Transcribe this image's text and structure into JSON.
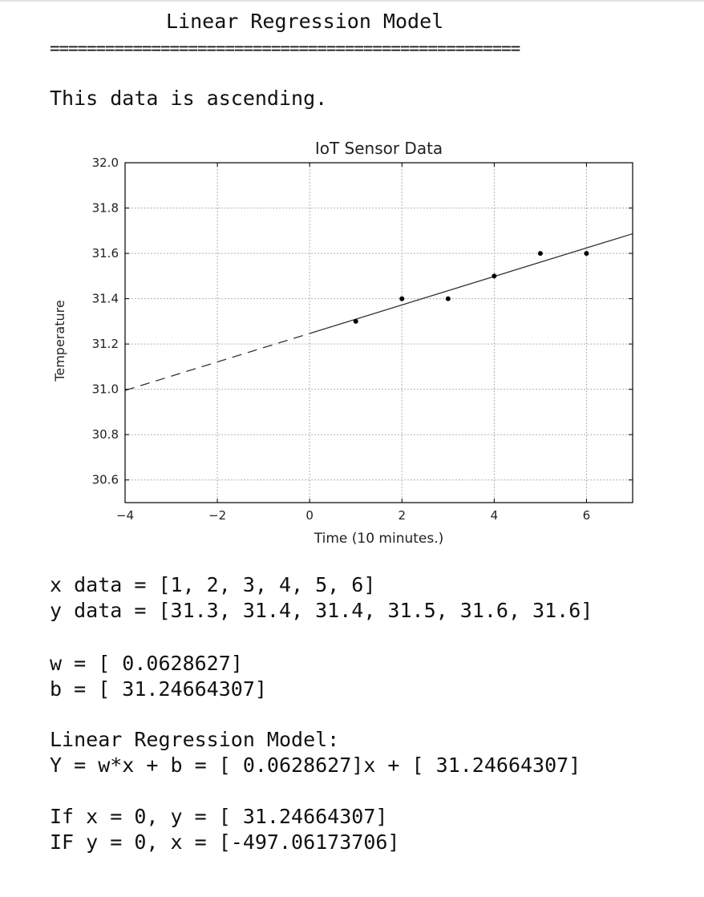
{
  "heading": "Linear Regression Model",
  "divider": "===================================================",
  "trend_note": "This data is ascending.",
  "chart_data": {
    "type": "scatter",
    "title": "IoT Sensor Data",
    "xlabel": "Time (10 minutes.)",
    "ylabel": "Temperature",
    "xlim": [
      -4,
      7
    ],
    "ylim": [
      30.5,
      32.0
    ],
    "xticks": [
      -4,
      -2,
      0,
      2,
      4,
      6
    ],
    "xtick_labels": [
      "−4",
      "−2",
      "0",
      "2",
      "4",
      "6"
    ],
    "yticks": [
      30.6,
      30.8,
      31.0,
      31.2,
      31.4,
      31.6,
      31.8,
      32.0
    ],
    "ytick_labels": [
      "30.6",
      "30.8",
      "31.0",
      "31.2",
      "31.4",
      "31.6",
      "31.8",
      "32.0"
    ],
    "grid": true,
    "points": [
      {
        "x": 1,
        "y": 31.3
      },
      {
        "x": 2,
        "y": 31.4
      },
      {
        "x": 3,
        "y": 31.4
      },
      {
        "x": 4,
        "y": 31.5
      },
      {
        "x": 5,
        "y": 31.6
      },
      {
        "x": 6,
        "y": 31.6
      }
    ],
    "fit": {
      "slope": 0.0628627,
      "intercept": 31.24664307,
      "solid_range": [
        0,
        7
      ],
      "dashed_range": [
        -4,
        0
      ]
    },
    "colors": {
      "marker": "#000000",
      "line": "#333333",
      "grid": "#b0b0b0"
    }
  },
  "results": {
    "x_line": "x data = [1, 2, 3, 4, 5, 6]",
    "y_line": "y data = [31.3, 31.4, 31.4, 31.5, 31.6, 31.6]",
    "w_line": "w = [ 0.0628627]",
    "b_line": "b = [ 31.24664307]",
    "model_heading": "Linear Regression Model:",
    "model_expr": "Y = w*x + b = [ 0.0628627]x + [ 31.24664307]",
    "if_x_zero": "If x = 0, y = [ 31.24664307]",
    "if_y_zero": "IF y = 0, x = [-497.06173706]"
  }
}
